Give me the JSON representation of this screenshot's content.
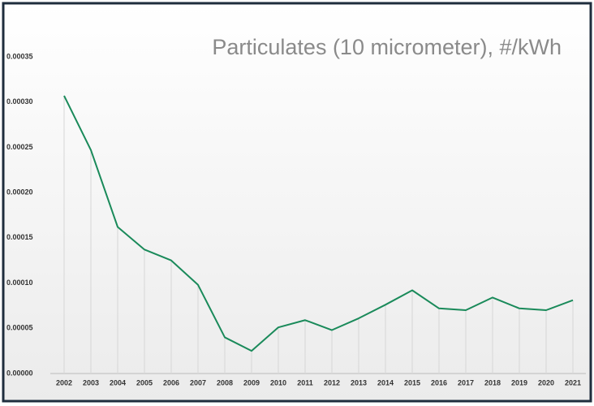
{
  "chart_data": {
    "type": "line",
    "title": "Particulates (10 micrometer), #/kWh",
    "categories": [
      "2002",
      "2003",
      "2004",
      "2005",
      "2006",
      "2007",
      "2008",
      "2009",
      "2010",
      "2011",
      "2012",
      "2013",
      "2014",
      "2015",
      "2016",
      "2017",
      "2018",
      "2019",
      "2020",
      "2021"
    ],
    "series": [
      {
        "name": "Particulates",
        "color": "#1a8a5a",
        "values": [
          0.000307,
          0.000247,
          0.000162,
          0.000137,
          0.000125,
          9.8e-05,
          4e-05,
          2.5e-05,
          5.1e-05,
          5.9e-05,
          4.8e-05,
          6.1e-05,
          7.6e-05,
          9.2e-05,
          7.2e-05,
          7e-05,
          8.4e-05,
          7.2e-05,
          7e-05,
          8.1e-05
        ]
      }
    ],
    "ylim": [
      0,
      0.00035
    ],
    "yticks": [
      {
        "value": 0,
        "label": "0.00000"
      },
      {
        "value": 5e-05,
        "label": "0.00005"
      },
      {
        "value": 0.0001,
        "label": "0.00010"
      },
      {
        "value": 0.00015,
        "label": "0.00015"
      },
      {
        "value": 0.0002,
        "label": "0.00020"
      },
      {
        "value": 0.00025,
        "label": "0.00025"
      },
      {
        "value": 0.0003,
        "label": "0.00030"
      },
      {
        "value": 0.00035,
        "label": "0.00035"
      }
    ]
  }
}
